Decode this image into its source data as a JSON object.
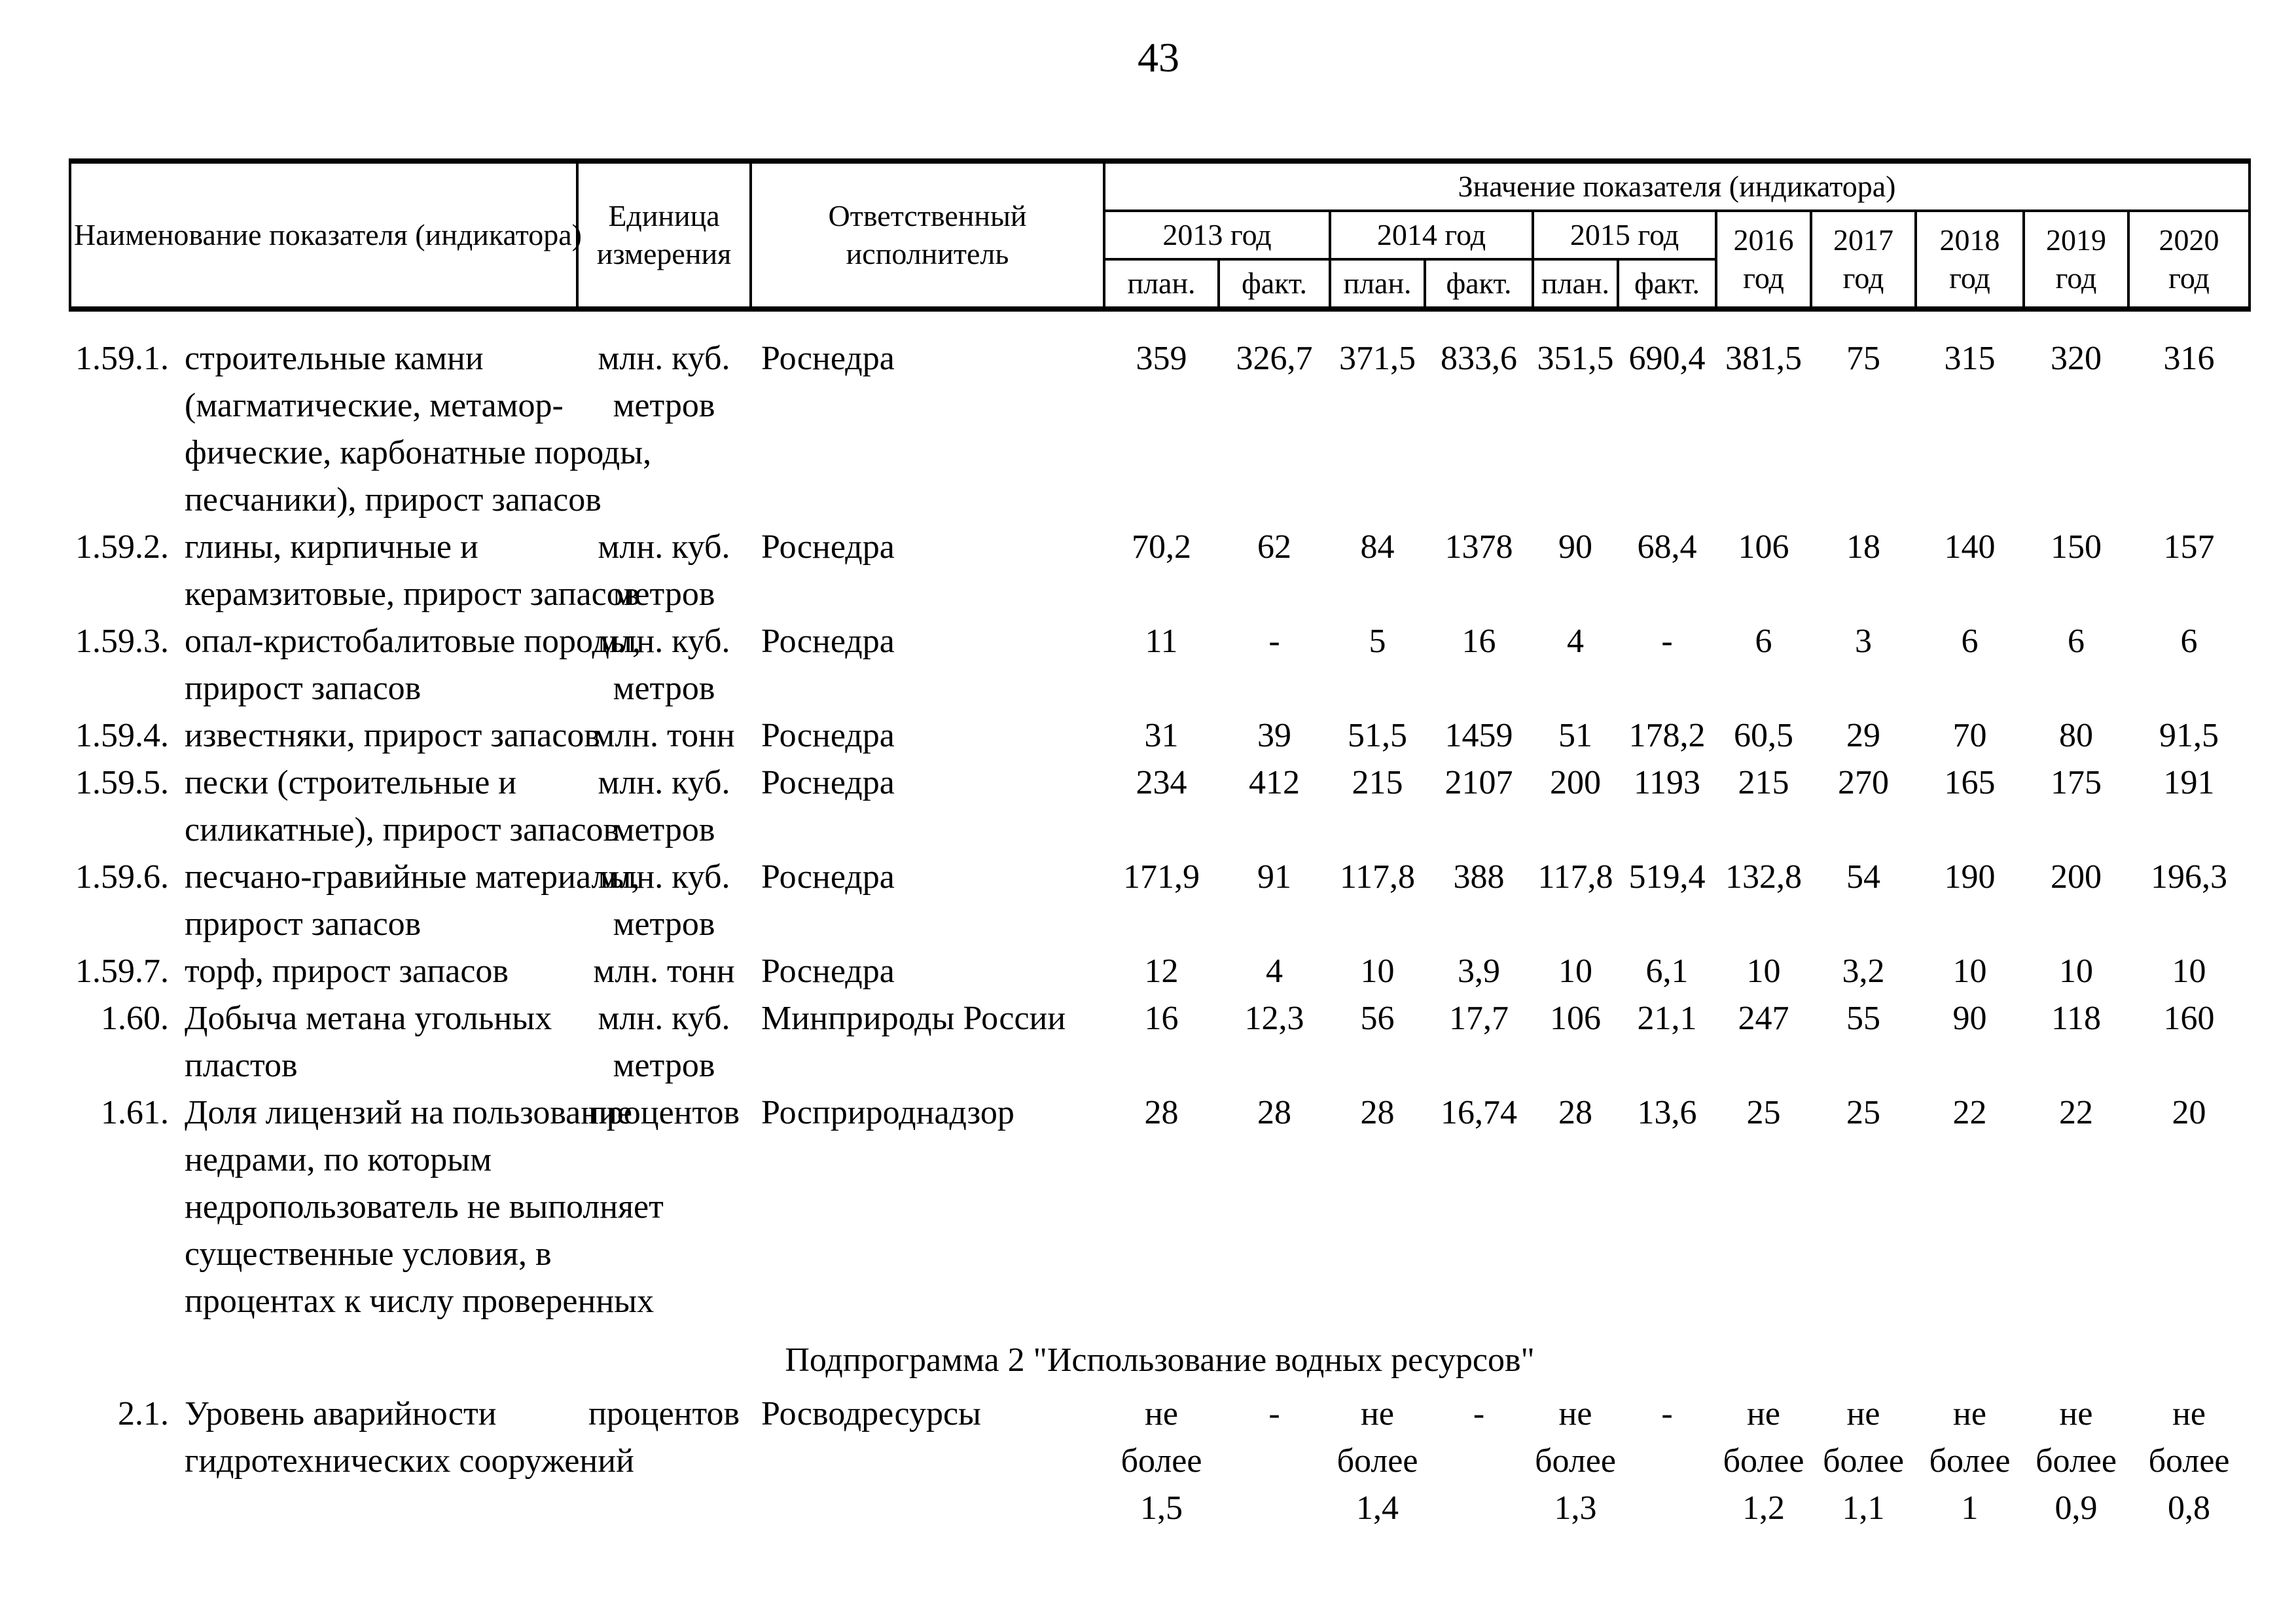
{
  "page": {
    "number": "43"
  },
  "table": {
    "header": {
      "col_name": "Наименование показателя (индикатора)",
      "col_unit": "Единица\nизмерения",
      "col_executor": "Ответственный\nисполнитель",
      "col_values": "Значение показателя (индикатора)",
      "years_pf": [
        "2013 год",
        "2014 год",
        "2015 год"
      ],
      "subcols": [
        "план.",
        "факт.",
        "план.",
        "факт.",
        "план.",
        "факт."
      ],
      "years_single": [
        "2016\nгод",
        "2017\nгод",
        "2018\nгод",
        "2019\nгод",
        "2020\nгод"
      ]
    },
    "section": "Подпрограмма 2 \"Использование водных ресурсов\"",
    "rows": [
      {
        "num": "1.59.1.",
        "name": "строительные камни\n(магматические, метамор-\nфические, карбонатные породы,\nпесчаники), прирост запасов",
        "unit": "млн. куб.\nметров",
        "executor": "Роснедра",
        "values": [
          "359",
          "326,7",
          "371,5",
          "833,6",
          "351,5",
          "690,4",
          "381,5",
          "75",
          "315",
          "320",
          "316"
        ]
      },
      {
        "num": "1.59.2.",
        "name": "глины, кирпичные и\nкерамзитовые, прирост запасов",
        "unit": "млн. куб.\nметров",
        "executor": "Роснедра",
        "values": [
          "70,2",
          "62",
          "84",
          "1378",
          "90",
          "68,4",
          "106",
          "18",
          "140",
          "150",
          "157"
        ]
      },
      {
        "num": "1.59.3.",
        "name": "опал-кристобалитовые породы,\nприрост запасов",
        "unit": "млн. куб.\nметров",
        "executor": "Роснедра",
        "values": [
          "11",
          "-",
          "5",
          "16",
          "4",
          "-",
          "6",
          "3",
          "6",
          "6",
          "6"
        ]
      },
      {
        "num": "1.59.4.",
        "name": "известняки, прирост запасов",
        "unit": "млн. тонн",
        "executor": "Роснедра",
        "values": [
          "31",
          "39",
          "51,5",
          "1459",
          "51",
          "178,2",
          "60,5",
          "29",
          "70",
          "80",
          "91,5"
        ]
      },
      {
        "num": "1.59.5.",
        "name": "пески (строительные и\nсиликатные), прирост запасов",
        "unit": "млн. куб.\nметров",
        "executor": "Роснедра",
        "values": [
          "234",
          "412",
          "215",
          "2107",
          "200",
          "1193",
          "215",
          "270",
          "165",
          "175",
          "191"
        ]
      },
      {
        "num": "1.59.6.",
        "name": "песчано-гравийные материалы,\nприрост запасов",
        "unit": "млн. куб.\nметров",
        "executor": "Роснедра",
        "values": [
          "171,9",
          "91",
          "117,8",
          "388",
          "117,8",
          "519,4",
          "132,8",
          "54",
          "190",
          "200",
          "196,3"
        ]
      },
      {
        "num": "1.59.7.",
        "name": "торф, прирост запасов",
        "unit": "млн. тонн",
        "executor": "Роснедра",
        "values": [
          "12",
          "4",
          "10",
          "3,9",
          "10",
          "6,1",
          "10",
          "3,2",
          "10",
          "10",
          "10"
        ]
      },
      {
        "num": "1.60.",
        "name": "Добыча метана угольных\nпластов",
        "unit": "млн. куб.\nметров",
        "executor": "Минприроды России",
        "values": [
          "16",
          "12,3",
          "56",
          "17,7",
          "106",
          "21,1",
          "247",
          "55",
          "90",
          "118",
          "160"
        ]
      },
      {
        "num": "1.61.",
        "name": "Доля лицензий на пользование\nнедрами, по которым\nнедропользователь не выполняет\nсущественные условия, в\nпроцентах к числу проверенных",
        "unit": "процентов",
        "executor": "Росприроднадзор",
        "values": [
          "28",
          "28",
          "28",
          "16,74",
          "28",
          "13,6",
          "25",
          "25",
          "22",
          "22",
          "20"
        ]
      },
      {
        "num": "2.1.",
        "name": "Уровень аварийности\nгидротехнических сооружений",
        "unit": "процентов",
        "executor": "Росводресурсы",
        "values": [
          "не\nболее\n1,5",
          "-",
          "не\nболее\n1,4",
          "-",
          "не\nболее\n1,3",
          "-",
          "не\nболее\n1,2",
          "не\nболее\n1,1",
          "не\nболее\n1",
          "не\nболее\n0,9",
          "не\nболее\n0,8"
        ]
      }
    ]
  }
}
